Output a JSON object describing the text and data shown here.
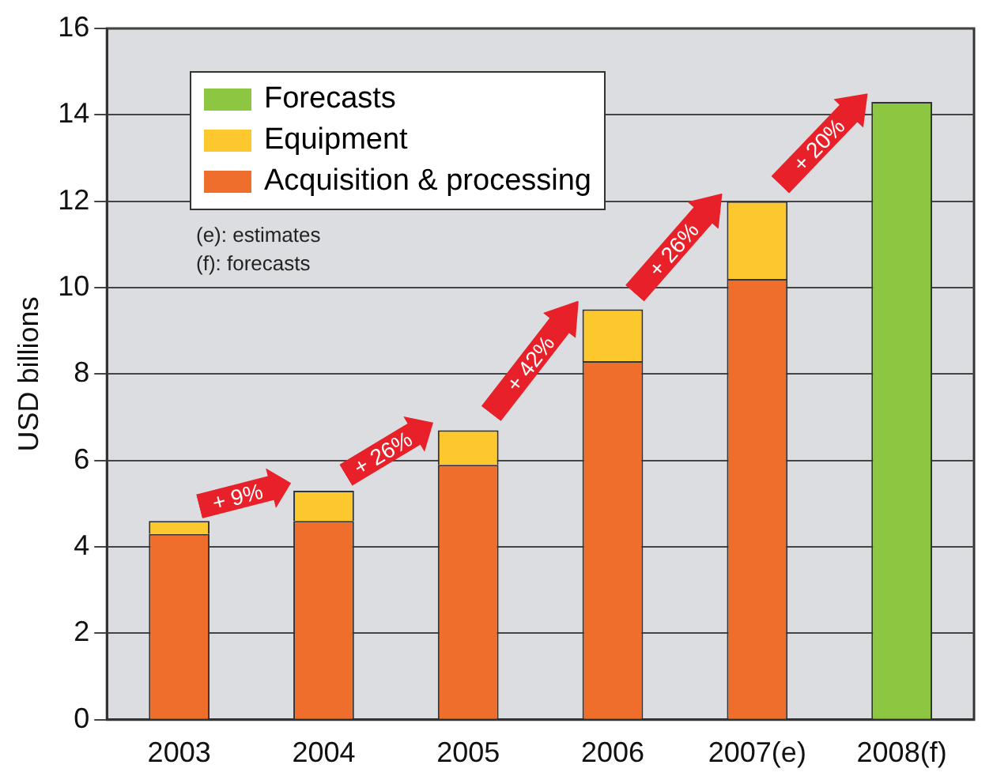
{
  "chart_data": {
    "type": "bar",
    "stacked": true,
    "ylabel": "USD billions",
    "categories": [
      "2003",
      "2004",
      "2005",
      "2006",
      "2007(e)",
      "2008(f)"
    ],
    "series": [
      {
        "name": "Acquisition & processing",
        "color": "#f06e2c",
        "values": [
          4.3,
          4.6,
          5.9,
          8.3,
          10.2,
          null
        ]
      },
      {
        "name": "Equipment",
        "color": "#fdc82d",
        "values": [
          0.3,
          0.7,
          0.8,
          1.2,
          1.8,
          null
        ]
      },
      {
        "name": "Forecasts",
        "color": "#8dc641",
        "values": [
          null,
          null,
          null,
          null,
          null,
          14.3
        ]
      }
    ],
    "ylim": [
      0,
      16
    ],
    "yticks": [
      0,
      2,
      4,
      6,
      8,
      10,
      12,
      14,
      16
    ],
    "grid": "y",
    "legend": "top left",
    "annotations": [
      "(e): estimates",
      "(f): forecasts",
      {
        "text": "+ 9%",
        "x": "2004",
        "y": 5.3
      },
      {
        "text": "+ 26%",
        "x": "2005",
        "y": 6.7
      },
      {
        "text": "+ 42%",
        "x": "2006",
        "y": 9.5
      },
      {
        "text": "+ 26%",
        "x": "2007(e)",
        "y": 12
      },
      {
        "text": "+ 20%",
        "x": "2008(f)",
        "y": 14.3
      }
    ]
  }
}
